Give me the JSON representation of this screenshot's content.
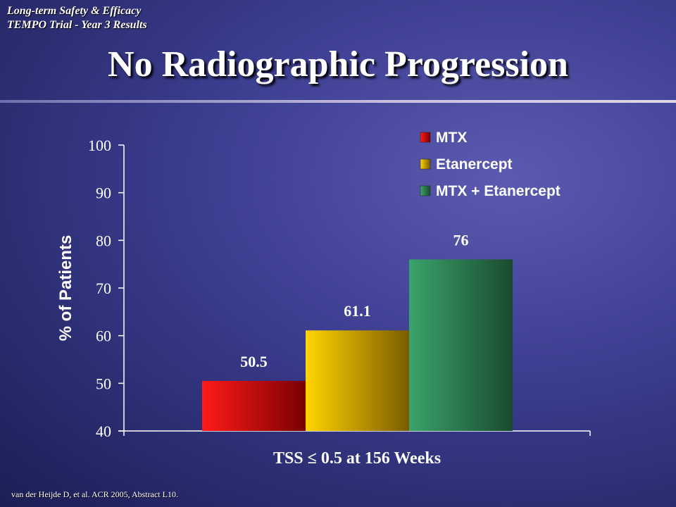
{
  "header": {
    "line1": "Long-term Safety & Efficacy",
    "line2": "TEMPO Trial - Year 3 Results"
  },
  "slide_title": "No Radiographic Progression",
  "footnote": "van der Heijde D, et al. ACR 2005, Abstract L10.",
  "chart_data": {
    "type": "bar",
    "title": "",
    "xlabel": "TSS ≤ 0.5 at 156 Weeks",
    "ylabel": "% of Patients",
    "ylim": [
      40,
      100
    ],
    "yticks": [
      "40",
      "50",
      "60",
      "70",
      "80",
      "90",
      "100"
    ],
    "categories": [
      "TSS ≤ 0.5 at 156 Weeks"
    ],
    "series": [
      {
        "name": "MTX",
        "values": [
          50.5
        ],
        "label": "50.5",
        "color_light": "#ff1a1a",
        "color_dark": "#7a0000"
      },
      {
        "name": "Etanercept",
        "values": [
          61.1
        ],
        "label": "61.1",
        "color_light": "#ffd400",
        "color_dark": "#7a5c00"
      },
      {
        "name": "MTX + Etanercept",
        "values": [
          76
        ],
        "label": "76",
        "color_light": "#3aa36a",
        "color_dark": "#1a4a30"
      }
    ],
    "legend_position": "top-right",
    "grid": false
  }
}
